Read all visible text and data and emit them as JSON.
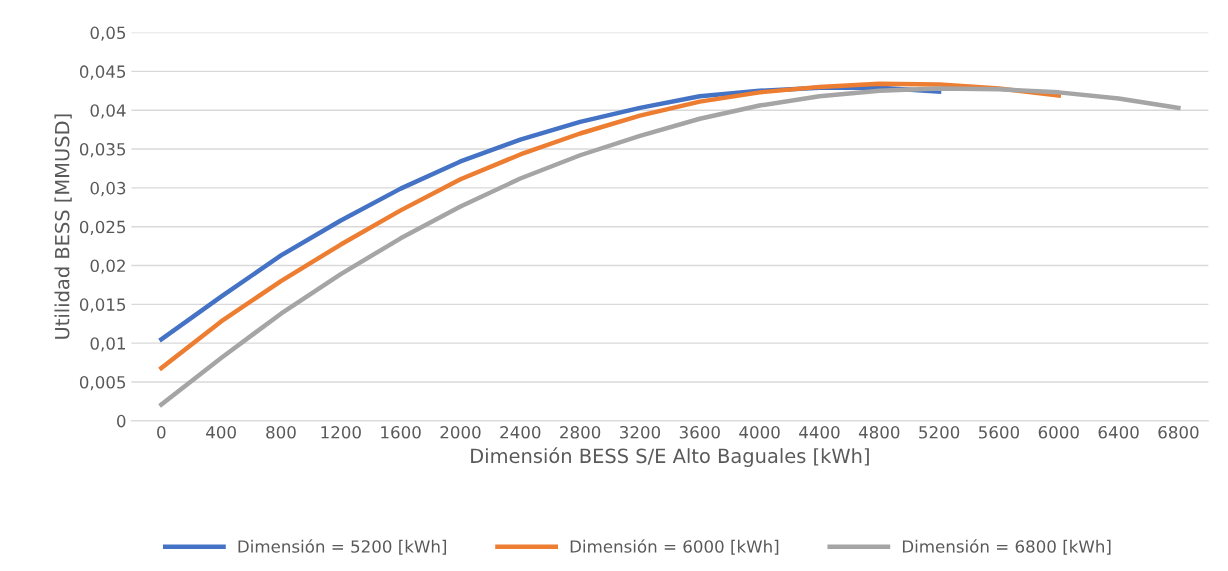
{
  "chart_data": {
    "type": "line",
    "xlabel": "Dimensión BESS S/E Alto Baguales [kWh]",
    "ylabel": "Utilidad BESS [MMUSD]",
    "categories": [
      "0",
      "400",
      "800",
      "1200",
      "1600",
      "2000",
      "2400",
      "2800",
      "3200",
      "3600",
      "4000",
      "4400",
      "4800",
      "5200",
      "5600",
      "6000",
      "6400",
      "6800"
    ],
    "series": [
      {
        "name": "Dimensión = 5200 [kWh]",
        "color": "#4472c4",
        "values": [
          0.0105,
          0.016,
          0.0213,
          0.0258,
          0.0299,
          0.0334,
          0.0362,
          0.0385,
          0.0403,
          0.0418,
          0.0425,
          0.0429,
          0.0429,
          0.0424,
          null,
          null,
          null,
          null
        ]
      },
      {
        "name": "Dimensión = 6000 [kWh]",
        "color": "#ed7d31",
        "values": [
          0.0068,
          0.0128,
          0.018,
          0.0227,
          0.0271,
          0.0311,
          0.0343,
          0.037,
          0.0393,
          0.0411,
          0.0423,
          0.043,
          0.0434,
          0.0433,
          0.0428,
          0.0419,
          null,
          null
        ]
      },
      {
        "name": "Dimensión = 6800 [kWh]",
        "color": "#a5a5a5",
        "values": [
          0.0021,
          0.0081,
          0.0138,
          0.0189,
          0.0235,
          0.0276,
          0.0312,
          0.0342,
          0.0367,
          0.0389,
          0.0406,
          0.0418,
          0.0425,
          0.0428,
          0.0427,
          0.0423,
          0.0415,
          0.0403
        ]
      }
    ],
    "ylim": [
      0,
      0.05
    ],
    "yticks": [
      0,
      {
        "value": 0.005,
        "label": "0,005"
      },
      {
        "value": 0.01,
        "label": "0,01"
      },
      {
        "value": 0.015,
        "label": "0,015"
      },
      {
        "value": 0.02,
        "label": "0,02"
      },
      {
        "value": 0.025,
        "label": "0,025"
      },
      {
        "value": 0.03,
        "label": "0,03"
      },
      {
        "value": 0.035,
        "label": "0,035"
      },
      {
        "value": 0.04,
        "label": "0,04"
      },
      {
        "value": 0.045,
        "label": "0,045"
      },
      {
        "value": 0.05,
        "label": "0,05"
      }
    ],
    "grid": "y",
    "legend": "bottom",
    "marker": "none",
    "line_style": "solid"
  }
}
